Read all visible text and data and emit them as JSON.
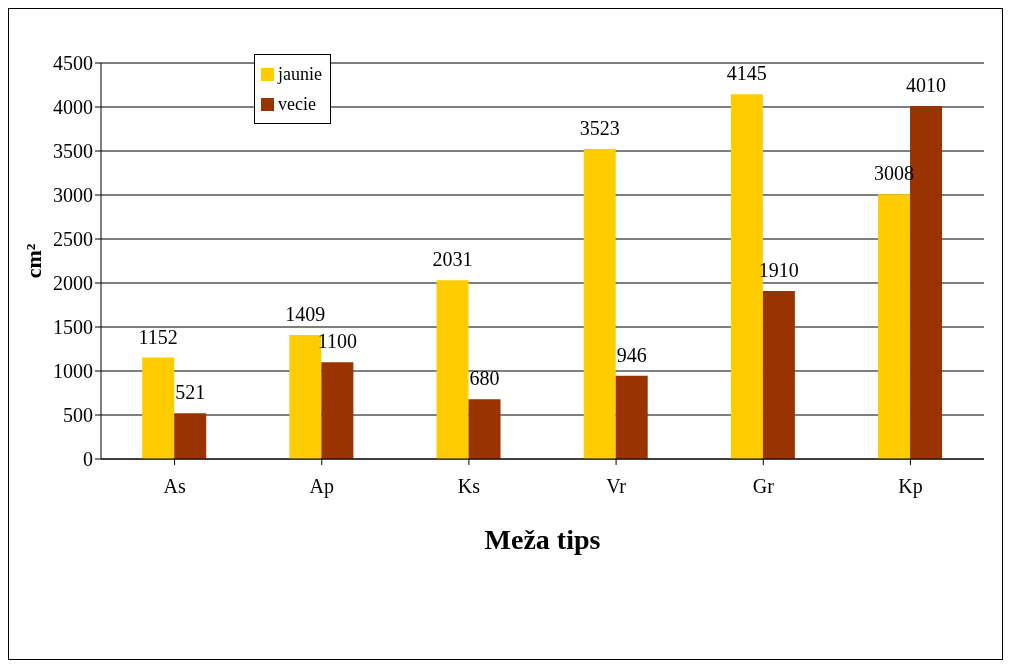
{
  "chart_data": {
    "type": "bar",
    "xlabel": "Meža tips",
    "ylabel": "cm²",
    "categories": [
      "As",
      "Ap",
      "Ks",
      "Vr",
      "Gr",
      "Kp"
    ],
    "series": [
      {
        "name": "jaunie",
        "color": "#ffcc00",
        "values": [
          1152,
          1409,
          2031,
          3523,
          4145,
          3008
        ]
      },
      {
        "name": "vecie",
        "color": "#993300",
        "values": [
          521,
          1100,
          680,
          946,
          1910,
          4010
        ]
      }
    ],
    "ylim": [
      0,
      4500
    ],
    "yticks": [
      0,
      500,
      1000,
      1500,
      2000,
      2500,
      3000,
      3500,
      4000,
      4500
    ],
    "grid": "y",
    "legend": "top left",
    "data_labels": true
  }
}
